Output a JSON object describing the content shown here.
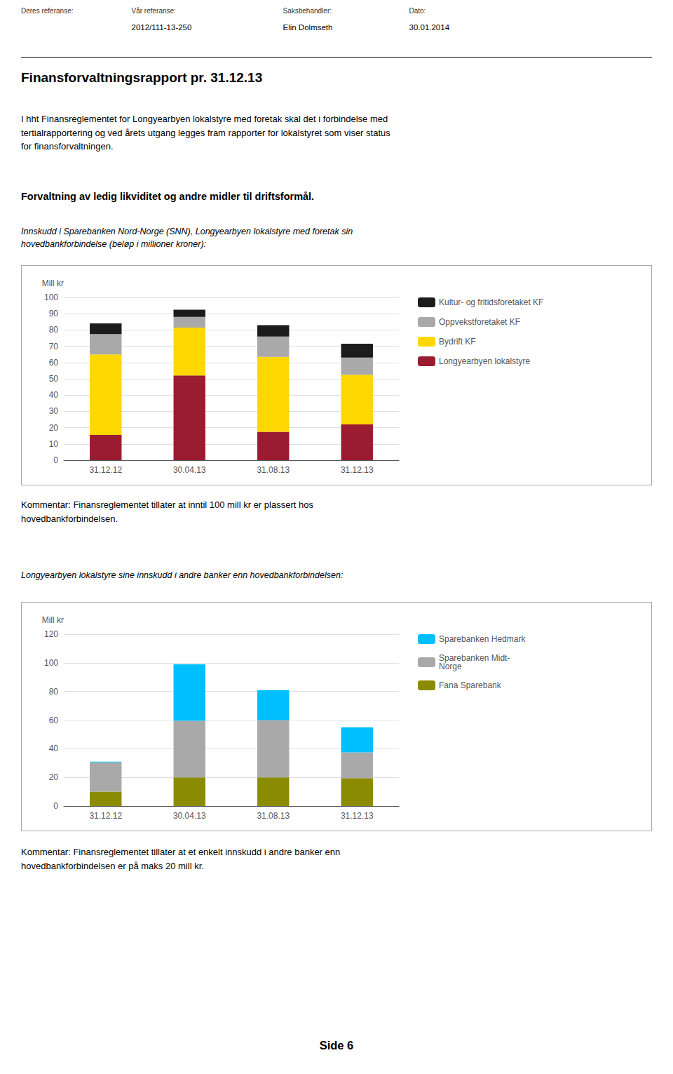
{
  "header": [
    {
      "label": "Deres referanse:"
    },
    {
      "label": "Vår referanse:",
      "value": "2012/111-13-250"
    },
    {
      "label": "Saksbehandler:",
      "value": "Elin Dolmseth"
    },
    {
      "label": "Dato:",
      "value": "30.01.2014"
    }
  ],
  "title": "Finansforvaltningsrapport pr. 31.12.13",
  "body_text": "I hht Finansreglementet for Longyearbyen lokalstyre med foretak skal det i forbindelse med\ntertialrapportering og ved årets utgang legges fram rapporter for lokalstyret som viser status\nfor finansforvaltningen.",
  "section_title": "Forvaltning av ledig likviditet og andre midler til driftsformål.",
  "footer": "Side 6",
  "chart_data": [
    {
      "type": "bar",
      "stacked": true,
      "subtitle": "Innskudd i Sparebanken Nord-Norge (SNN), Longyearbyen lokalstyre med foretak sin\nhovedbankforbindelse (beløp i millioner kroner):",
      "ylabel": "Mill kr",
      "categories": [
        "31.12.12",
        "30.04.13",
        "31.08.13",
        "31.12.13"
      ],
      "series": [
        {
          "name": "Longyearbyen lokalstyre",
          "color": "#9B1B30",
          "values": [
            15.5,
            52.0,
            17.5,
            22.0
          ]
        },
        {
          "name": "Bydrift KF",
          "color": "#FFD700",
          "values": [
            49.5,
            29.5,
            46.0,
            30.5
          ]
        },
        {
          "name": "Oppvekstforetaket KF",
          "color": "#A9A9A9",
          "values": [
            12.5,
            6.5,
            12.5,
            10.5
          ]
        },
        {
          "name": "Kultur- og fritidsforetaket KF",
          "color": "#1C1C1C",
          "values": [
            6.5,
            4.5,
            7.0,
            8.5
          ]
        }
      ],
      "ylim": [
        0,
        100
      ],
      "yticks": [
        0,
        10,
        20,
        30,
        40,
        50,
        60,
        70,
        80,
        90,
        100
      ],
      "grid": true,
      "legend": "right",
      "comment": "Kommentar: Finansreglementet tillater at inntil 100 mill kr er plassert hos\nhovedbankforbindelsen."
    },
    {
      "type": "bar",
      "stacked": true,
      "subtitle": "Longyearbyen lokalstyre sine innskudd i andre banker enn hovedbankforbindelsen:",
      "ylabel": "Mill kr",
      "categories": [
        "31.12.12",
        "30.04.13",
        "31.08.13",
        "31.12.13"
      ],
      "series": [
        {
          "name": "Fana Sparebank",
          "color": "#8B8B00",
          "values": [
            10.0,
            20.0,
            20.0,
            19.5
          ]
        },
        {
          "name": "Sparebanken Midt-\nNorge",
          "color": "#A9A9A9",
          "values": [
            20.5,
            39.5,
            40.0,
            18.0
          ]
        },
        {
          "name": "Sparebanken Hedmark",
          "color": "#00BFFF",
          "values": [
            0.5,
            39.5,
            21.0,
            17.5
          ]
        }
      ],
      "ylim": [
        0,
        120
      ],
      "yticks": [
        0,
        20,
        40,
        60,
        80,
        100,
        120
      ],
      "grid": true,
      "legend": "right",
      "comment": "Kommentar: Finansreglementet tillater at et enkelt innskudd i andre banker enn\nhovedbankforbindelsen er på maks 20 mill kr."
    }
  ]
}
